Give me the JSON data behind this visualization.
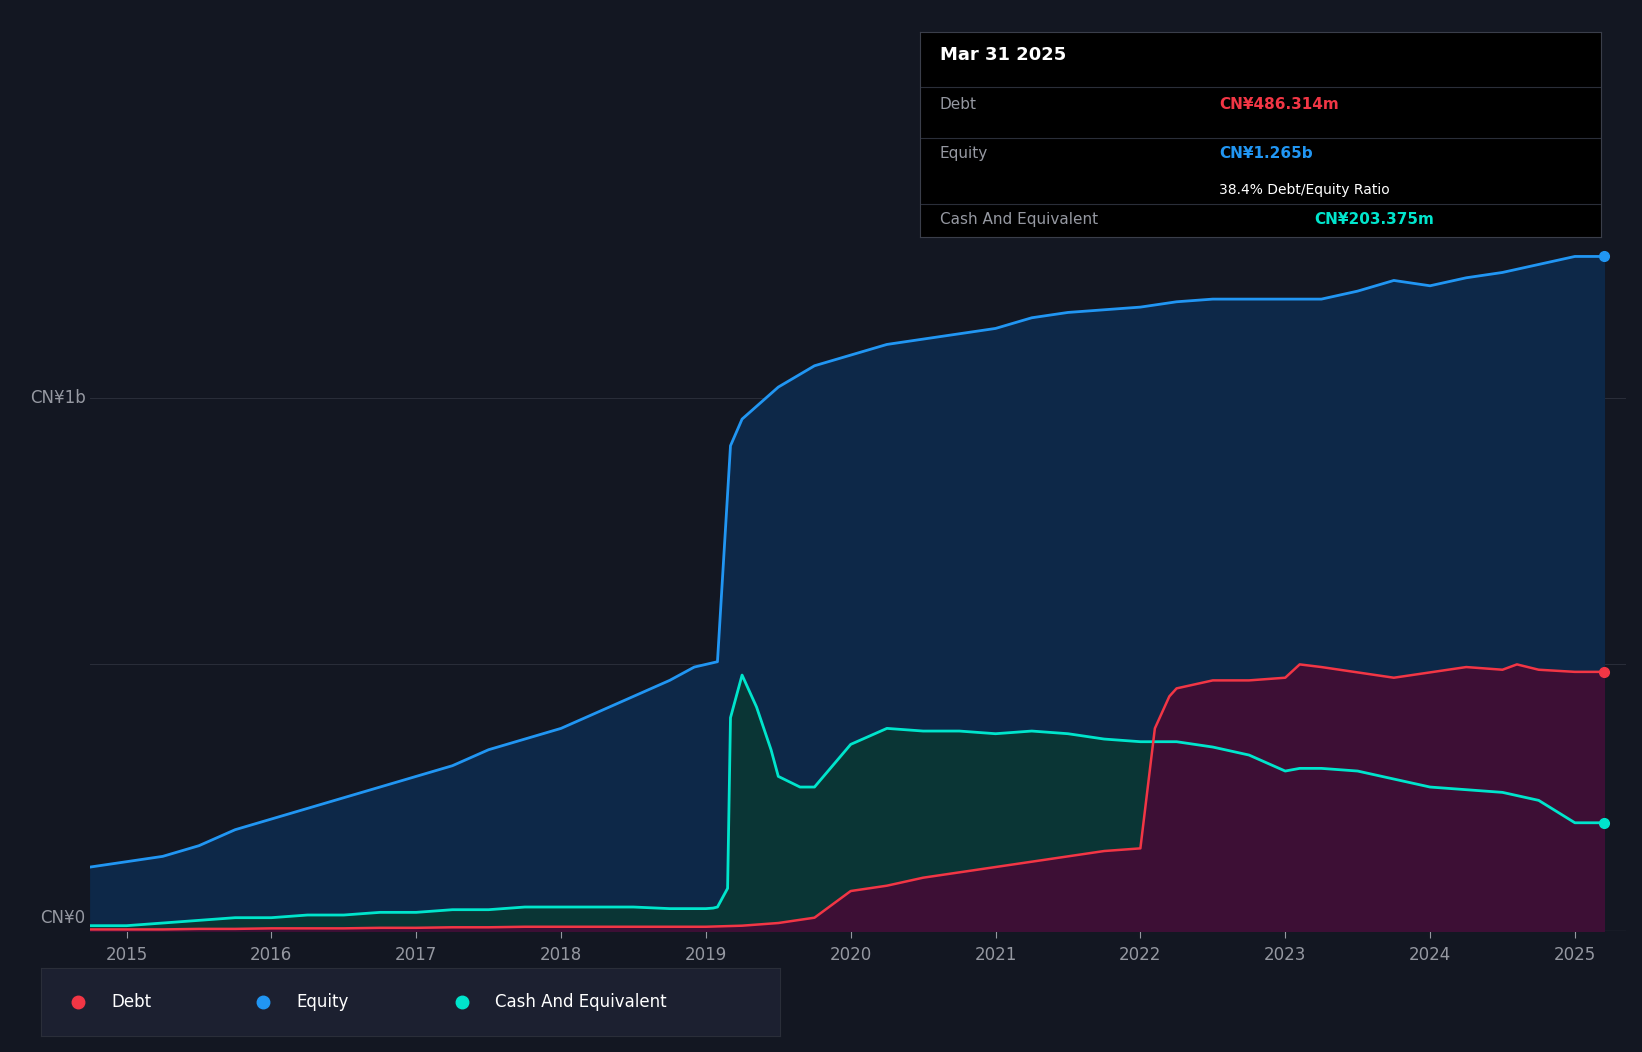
{
  "bg_color": "#131722",
  "equity_color": "#2196f3",
  "debt_color": "#f23645",
  "cash_color": "#00e5cc",
  "equity_fill": "#0d2a4a",
  "debt_fill_purple": "#4a1040",
  "cash_fill": "#0d3d3d",
  "tooltip": {
    "date": "Mar 31 2025",
    "debt_label": "Debt",
    "debt_value": "CN¥486.314m",
    "equity_label": "Equity",
    "equity_value": "CN¥1.265b",
    "ratio_text": "38.4% Debt/Equity Ratio",
    "cash_label": "Cash And Equivalent",
    "cash_value": "CN¥203.375m"
  },
  "legend": [
    {
      "label": "Debt",
      "color": "#f23645"
    },
    {
      "label": "Equity",
      "color": "#2196f3"
    },
    {
      "label": "Cash And Equivalent",
      "color": "#00e5cc"
    }
  ],
  "equity_x": [
    2014.75,
    2015.0,
    2015.25,
    2015.5,
    2015.75,
    2016.0,
    2016.25,
    2016.5,
    2016.75,
    2017.0,
    2017.25,
    2017.5,
    2017.75,
    2018.0,
    2018.25,
    2018.5,
    2018.75,
    2018.92,
    2019.0,
    2019.08,
    2019.17,
    2019.25,
    2019.5,
    2019.75,
    2020.0,
    2020.25,
    2020.5,
    2020.75,
    2021.0,
    2021.25,
    2021.5,
    2021.75,
    2022.0,
    2022.25,
    2022.5,
    2022.75,
    2023.0,
    2023.25,
    2023.5,
    2023.75,
    2024.0,
    2024.25,
    2024.5,
    2024.75,
    2025.0,
    2025.2
  ],
  "equity_y": [
    0.12,
    0.13,
    0.14,
    0.16,
    0.19,
    0.21,
    0.23,
    0.25,
    0.27,
    0.29,
    0.31,
    0.34,
    0.36,
    0.38,
    0.41,
    0.44,
    0.47,
    0.495,
    0.5,
    0.505,
    0.91,
    0.96,
    1.02,
    1.06,
    1.08,
    1.1,
    1.11,
    1.12,
    1.13,
    1.15,
    1.16,
    1.165,
    1.17,
    1.18,
    1.185,
    1.185,
    1.185,
    1.185,
    1.2,
    1.22,
    1.21,
    1.225,
    1.235,
    1.25,
    1.265,
    1.265
  ],
  "debt_x": [
    2014.75,
    2015.0,
    2015.25,
    2015.5,
    2015.75,
    2016.0,
    2016.25,
    2016.5,
    2016.75,
    2017.0,
    2017.25,
    2017.5,
    2017.75,
    2018.0,
    2018.25,
    2018.5,
    2018.75,
    2019.0,
    2019.25,
    2019.5,
    2019.75,
    2020.0,
    2020.25,
    2020.5,
    2020.75,
    2021.0,
    2021.25,
    2021.5,
    2021.75,
    2022.0,
    2022.1,
    2022.2,
    2022.25,
    2022.5,
    2022.75,
    2023.0,
    2023.1,
    2023.25,
    2023.5,
    2023.75,
    2024.0,
    2024.25,
    2024.5,
    2024.6,
    2024.75,
    2025.0,
    2025.2
  ],
  "debt_y": [
    0.003,
    0.003,
    0.003,
    0.004,
    0.004,
    0.005,
    0.005,
    0.005,
    0.006,
    0.006,
    0.007,
    0.007,
    0.008,
    0.008,
    0.008,
    0.008,
    0.008,
    0.008,
    0.01,
    0.015,
    0.025,
    0.075,
    0.085,
    0.1,
    0.11,
    0.12,
    0.13,
    0.14,
    0.15,
    0.155,
    0.38,
    0.44,
    0.455,
    0.47,
    0.47,
    0.475,
    0.5,
    0.495,
    0.485,
    0.475,
    0.485,
    0.495,
    0.49,
    0.5,
    0.49,
    0.486,
    0.486
  ],
  "cash_x": [
    2014.75,
    2015.0,
    2015.25,
    2015.5,
    2015.75,
    2016.0,
    2016.25,
    2016.5,
    2016.75,
    2017.0,
    2017.25,
    2017.5,
    2017.75,
    2018.0,
    2018.25,
    2018.5,
    2018.75,
    2019.0,
    2019.05,
    2019.08,
    2019.15,
    2019.17,
    2019.25,
    2019.35,
    2019.45,
    2019.5,
    2019.65,
    2019.75,
    2020.0,
    2020.25,
    2020.5,
    2020.75,
    2021.0,
    2021.25,
    2021.5,
    2021.75,
    2022.0,
    2022.25,
    2022.5,
    2022.75,
    2023.0,
    2023.1,
    2023.25,
    2023.5,
    2023.75,
    2024.0,
    2024.25,
    2024.5,
    2024.75,
    2025.0,
    2025.2
  ],
  "cash_y": [
    0.01,
    0.01,
    0.015,
    0.02,
    0.025,
    0.025,
    0.03,
    0.03,
    0.035,
    0.035,
    0.04,
    0.04,
    0.045,
    0.045,
    0.045,
    0.045,
    0.042,
    0.042,
    0.043,
    0.045,
    0.08,
    0.4,
    0.48,
    0.42,
    0.34,
    0.29,
    0.27,
    0.27,
    0.35,
    0.38,
    0.375,
    0.375,
    0.37,
    0.375,
    0.37,
    0.36,
    0.355,
    0.355,
    0.345,
    0.33,
    0.3,
    0.305,
    0.305,
    0.3,
    0.285,
    0.27,
    0.265,
    0.26,
    0.245,
    0.203,
    0.203
  ],
  "ylim": [
    0,
    1.45
  ],
  "xlim": [
    2014.75,
    2025.35
  ],
  "x_ticks": [
    2015,
    2016,
    2017,
    2018,
    2019,
    2020,
    2021,
    2022,
    2023,
    2024,
    2025
  ],
  "gridline_y": [
    0,
    0.5,
    1.0
  ]
}
